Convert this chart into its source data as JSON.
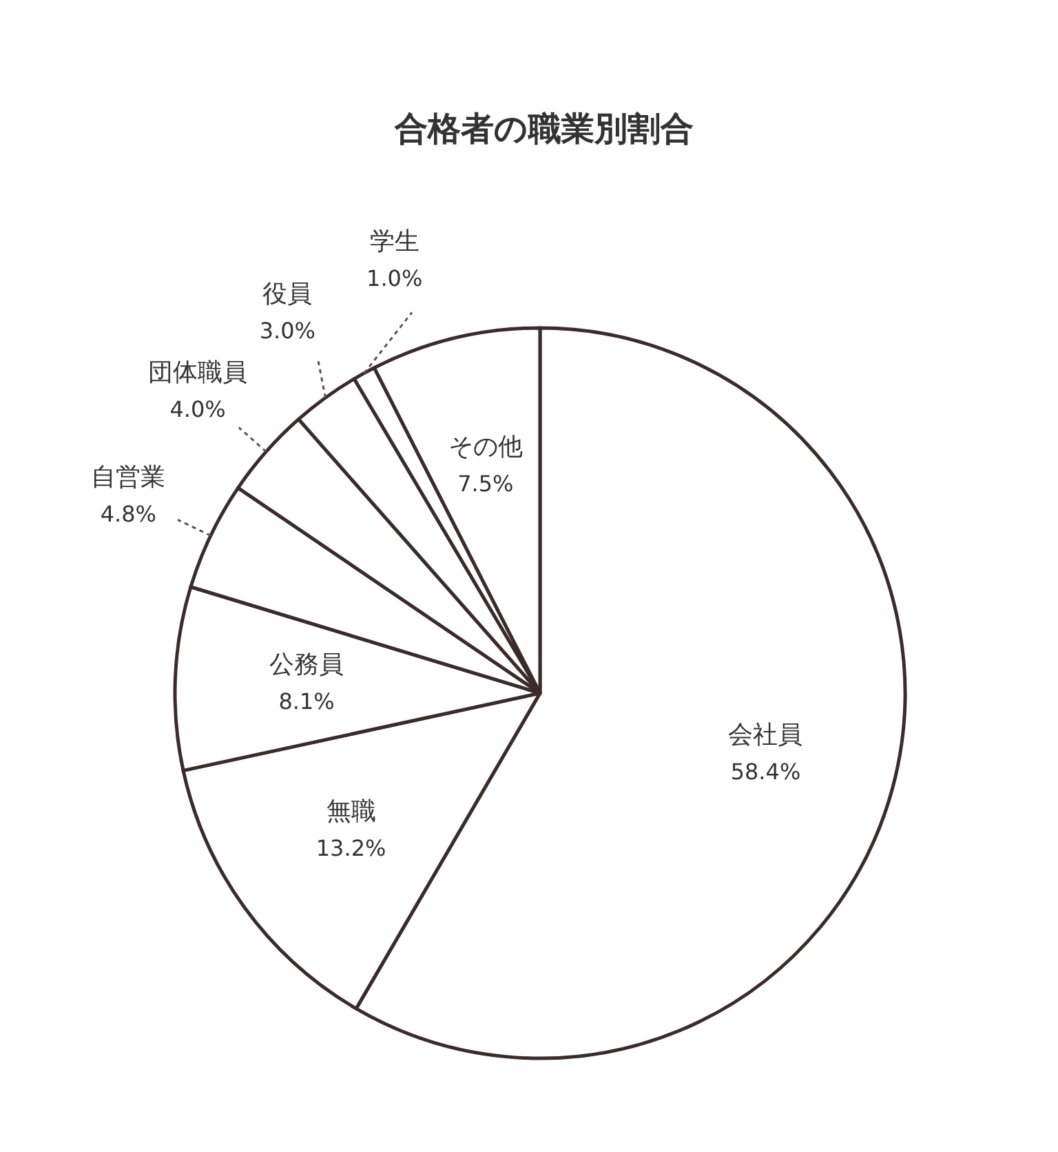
{
  "chart_data": {
    "type": "pie",
    "title": "合格者の職業別割合",
    "categories": [
      "会社員",
      "無職",
      "公務員",
      "自営業",
      "団体職員",
      "役員",
      "学生",
      "その他"
    ],
    "values": [
      58.4,
      13.2,
      8.1,
      4.8,
      4.0,
      3.0,
      1.0,
      7.5
    ],
    "value_labels": [
      "58.4%",
      "13.2%",
      "8.1%",
      "4.8%",
      "4.0%",
      "3.0%",
      "1.0%",
      "7.5%"
    ],
    "colors": [
      "#ffffff",
      "#ffffff",
      "#ffffff",
      "#ffffff",
      "#ffffff",
      "#ffffff",
      "#ffffff",
      "#ffffff"
    ],
    "legend": false
  }
}
